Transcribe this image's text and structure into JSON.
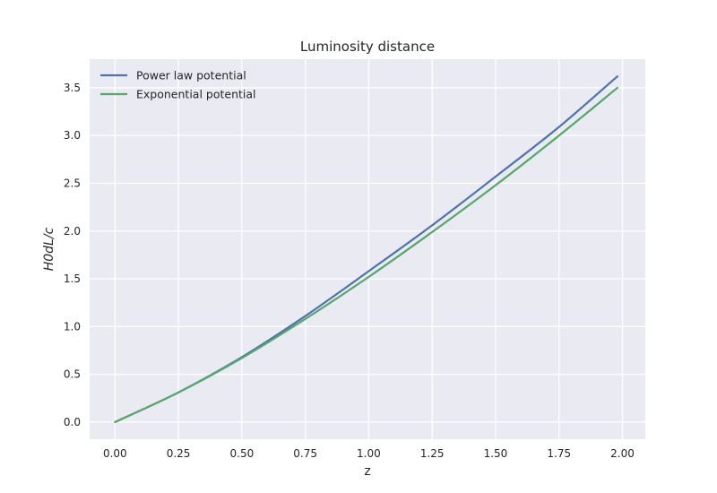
{
  "chart_data": {
    "type": "line",
    "title": "Luminosity distance",
    "xlabel": "z",
    "ylabel": "H0dL/c",
    "xlim": [
      -0.1,
      2.09
    ],
    "ylim": [
      -0.18,
      3.8
    ],
    "xticks": [
      0.0,
      0.25,
      0.5,
      0.75,
      1.0,
      1.25,
      1.5,
      1.75,
      2.0
    ],
    "yticks": [
      0.0,
      0.5,
      1.0,
      1.5,
      2.0,
      2.5,
      3.0,
      3.5
    ],
    "xtick_labels": [
      "0.00",
      "0.25",
      "0.50",
      "0.75",
      "1.00",
      "1.25",
      "1.50",
      "1.75",
      "2.00"
    ],
    "ytick_labels": [
      "0.0",
      "0.5",
      "1.0",
      "1.5",
      "2.0",
      "2.5",
      "3.0",
      "3.5"
    ],
    "grid": true,
    "legend_placement": "top-left",
    "background_color": "#eaeaf2",
    "x": [
      0.0,
      0.25,
      0.5,
      0.75,
      1.0,
      1.25,
      1.5,
      1.75,
      1.98
    ],
    "series": [
      {
        "name": "Power law potential",
        "color": "#4c72b0",
        "values": [
          0.0,
          0.31,
          0.68,
          1.11,
          1.58,
          2.06,
          2.57,
          3.09,
          3.62
        ]
      },
      {
        "name": "Exponential potential",
        "color": "#55a868",
        "values": [
          0.0,
          0.31,
          0.67,
          1.08,
          1.52,
          1.99,
          2.48,
          3.0,
          3.5
        ]
      }
    ]
  }
}
